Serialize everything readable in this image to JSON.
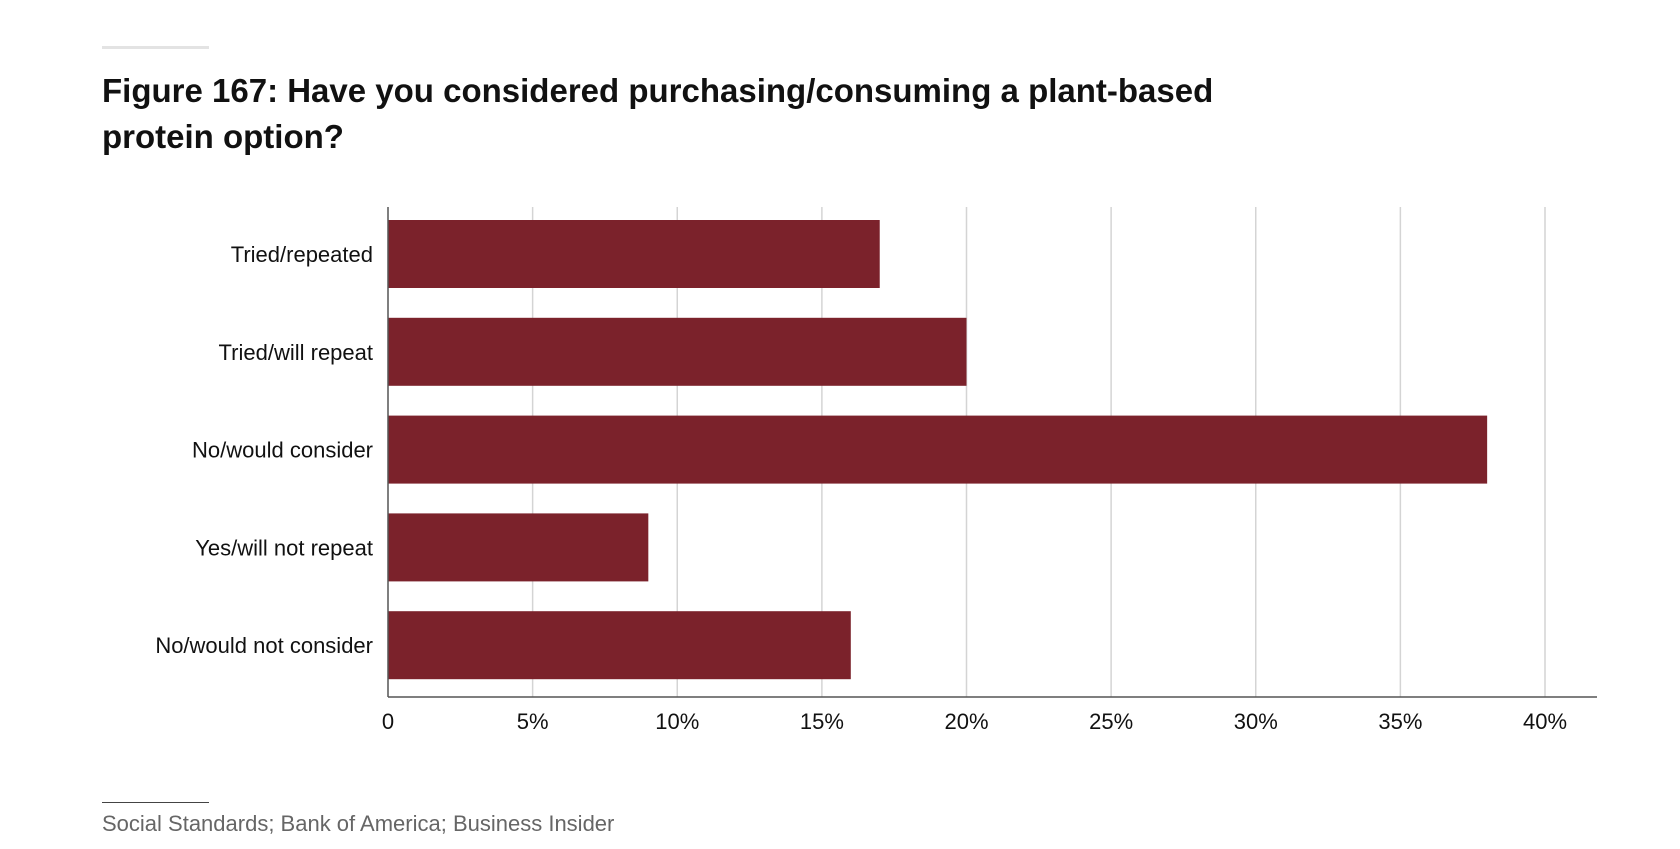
{
  "header": {
    "title": "Figure 167: Have you considered purchasing/consuming a plant-based protein option?"
  },
  "footer": {
    "source": "Social Standards; Bank of America; Business Insider"
  },
  "colors": {
    "bar": "#7b222b",
    "grid": "#d4d4d4",
    "axis": "#555555"
  },
  "chart_data": {
    "type": "bar",
    "orientation": "horizontal",
    "title": "Figure 167: Have you considered purchasing/consuming a plant-based protein option?",
    "categories": [
      "Tried/repeated",
      "Tried/will repeat",
      "No/would consider",
      "Yes/will not repeat",
      "No/would not consider"
    ],
    "values": [
      17,
      20,
      38,
      9,
      16
    ],
    "xlim": [
      0,
      40
    ],
    "xticks": [
      0,
      5,
      10,
      15,
      20,
      25,
      30,
      35,
      40
    ],
    "xtick_labels": [
      "0",
      "5%",
      "10%",
      "15%",
      "20%",
      "25%",
      "30%",
      "35%",
      "40%"
    ],
    "grid": "vertical",
    "legend": "none"
  }
}
